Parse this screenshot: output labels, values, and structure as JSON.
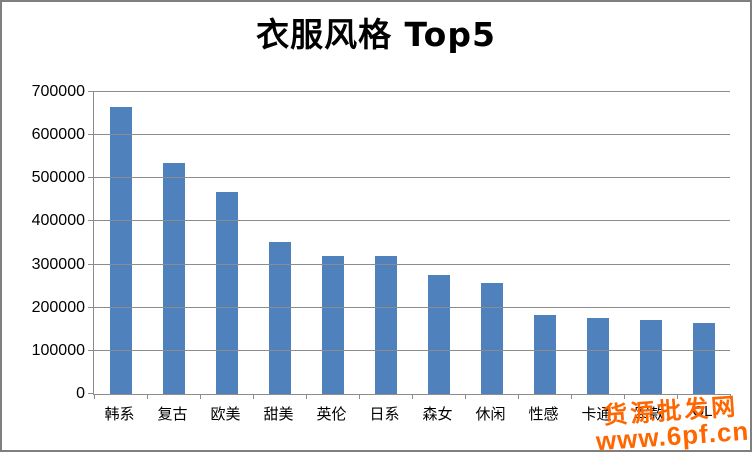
{
  "chart_data": {
    "type": "bar",
    "title": "衣服风格 Top5",
    "categories": [
      "韩系",
      "复古",
      "欧美",
      "甜美",
      "英伦",
      "日系",
      "森女",
      "休闲",
      "性感",
      "卡通",
      "军款",
      "OL"
    ],
    "values": [
      665000,
      536000,
      468000,
      352000,
      319000,
      320000,
      275000,
      257000,
      183000,
      177000,
      172000,
      164000
    ],
    "ylim": [
      0,
      700000
    ],
    "ytick_step": 100000,
    "ytick_labels": [
      "0",
      "100000",
      "200000",
      "300000",
      "400000",
      "500000",
      "600000",
      "700000"
    ],
    "xlabel": "",
    "ylabel": "",
    "grid": true,
    "legend": false,
    "bar_color": "#4F81BD",
    "gridline_color": "#8C8C8C"
  },
  "watermark": {
    "line1": "货源批发网",
    "line2": "www.6pf.cn",
    "color": "#FF6600"
  }
}
